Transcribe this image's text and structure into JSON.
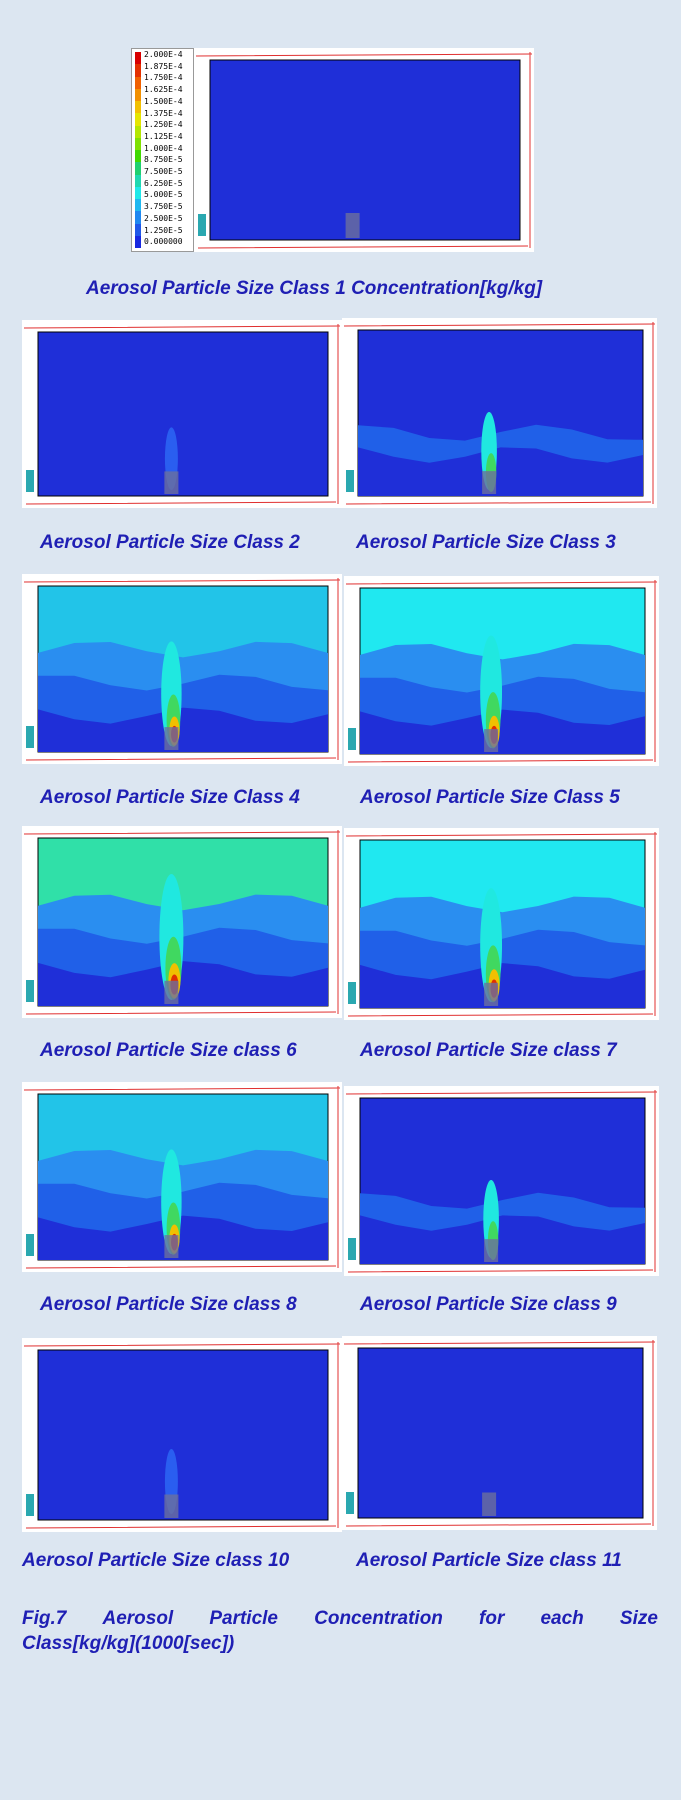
{
  "colorbar": {
    "labels": [
      "2.000E-4",
      "1.875E-4",
      "1.750E-4",
      "1.625E-4",
      "1.500E-4",
      "1.375E-4",
      "1.250E-4",
      "1.125E-4",
      "1.000E-4",
      "8.750E-5",
      "7.500E-5",
      "6.250E-5",
      "5.000E-5",
      "3.750E-5",
      "2.500E-5",
      "1.250E-5",
      "0.000000"
    ],
    "colors": [
      "#d90000",
      "#e43000",
      "#f06000",
      "#f29000",
      "#f2c000",
      "#e5e500",
      "#b4e600",
      "#80e000",
      "#40d800",
      "#20d070",
      "#20d8b0",
      "#20e8e8",
      "#20b8f0",
      "#2088f0",
      "#2058e8",
      "#1828e0"
    ]
  },
  "panels": [
    {
      "caption": "Aerosol Particle Size Class 1 Concentration[kg/kg]",
      "level": 0.0
    },
    {
      "caption": "Aerosol Particle Size Class 2",
      "level": 0.08
    },
    {
      "caption": "Aerosol Particle Size Class 3",
      "level": 0.3
    },
    {
      "caption": "Aerosol Particle Size Class 4",
      "level": 0.7
    },
    {
      "caption": "Aerosol Particle Size Class 5",
      "level": 0.82
    },
    {
      "caption": "Aerosol Particle Size class 6",
      "level": 1.0
    },
    {
      "caption": "Aerosol Particle Size class 7",
      "level": 0.82
    },
    {
      "caption": "Aerosol Particle Size class 8",
      "level": 0.7
    },
    {
      "caption": "Aerosol Particle Size class 9",
      "level": 0.3
    },
    {
      "caption": "Aerosol Particle Size class 10",
      "level": 0.08
    },
    {
      "caption": "Aerosol Particle Size class 11",
      "level": 0.0
    }
  ],
  "figure_caption": {
    "line1_words": [
      "Fig.7",
      "Aerosol",
      "Particle",
      "Concentration",
      "for",
      "each",
      "Size"
    ],
    "line2": "Class[kg/kg](1000[sec])"
  }
}
